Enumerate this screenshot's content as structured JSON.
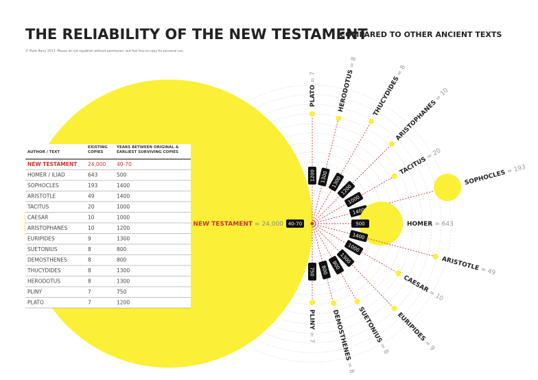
{
  "header": {
    "title": "THE RELIABILITY OF THE NEW TESTAMENT",
    "subtitle": "COMPARED TO OTHER ANCIENT TEXTS",
    "copyright": "© Mark Barry 2013. Please do not republish without permission, but feel free to copy for personal use."
  },
  "table": {
    "columns": [
      "AUTHOR / TEXT",
      "EXISTING COPIES",
      "YEARS BETWEEN ORIGINAL & EARLIEST SURVIVING COPIES"
    ],
    "rows": [
      [
        "NEW TESTAMENT",
        "24,000",
        "40-70"
      ],
      [
        "HOMER / ILIAD",
        "643",
        "500"
      ],
      [
        "SOPHOCLES",
        "193",
        "1400"
      ],
      [
        "ARISTOTLE",
        "49",
        "1400"
      ],
      [
        "TACITUS",
        "20",
        "1000"
      ],
      [
        "CAESAR",
        "10",
        "1000"
      ],
      [
        "ARISTOPHANES",
        "10",
        "1200"
      ],
      [
        "EURIPIDES",
        "9",
        "1300"
      ],
      [
        "SUETONIUS",
        "8",
        "800"
      ],
      [
        "DEMOSTHENES",
        "8",
        "800"
      ],
      [
        "THUCYDIDES",
        "8",
        "1300"
      ],
      [
        "HERODOTUS",
        "8",
        "1300"
      ],
      [
        "PLINY",
        "7",
        "750"
      ],
      [
        "PLATO",
        "7",
        "1200"
      ]
    ]
  },
  "center": {
    "name": "NEW TESTAMENT",
    "count": "= 24,000",
    "gap": "40-70"
  },
  "spokes": [
    {
      "name": "PLATO",
      "count": "= 7",
      "gap": "1200"
    },
    {
      "name": "HERODOTUS",
      "count": "= 8",
      "gap": "1300"
    },
    {
      "name": "THUCYDIDES",
      "count": "= 8",
      "gap": "1300"
    },
    {
      "name": "ARISTOPHANES",
      "count": "= 10",
      "gap": "1200"
    },
    {
      "name": "TACITUS",
      "count": "= 20",
      "gap": "1000"
    },
    {
      "name": "SOPHOCLES",
      "count": "= 193",
      "gap": "1400"
    },
    {
      "name": "HOMER",
      "count": "= 643",
      "gap": "500"
    },
    {
      "name": "ARISTOTLE",
      "count": "= 49",
      "gap": "1400"
    },
    {
      "name": "CAESAR",
      "count": "= 10",
      "gap": "1000"
    },
    {
      "name": "EURIPIDES",
      "count": "= 9",
      "gap": "1300"
    },
    {
      "name": "SUETONIUS",
      "count": "= 8",
      "gap": "800"
    },
    {
      "name": "DEMOSTHENES",
      "count": "= 8",
      "gap": "800"
    },
    {
      "name": "PLINY",
      "count": "= 7",
      "gap": "750"
    }
  ]
}
